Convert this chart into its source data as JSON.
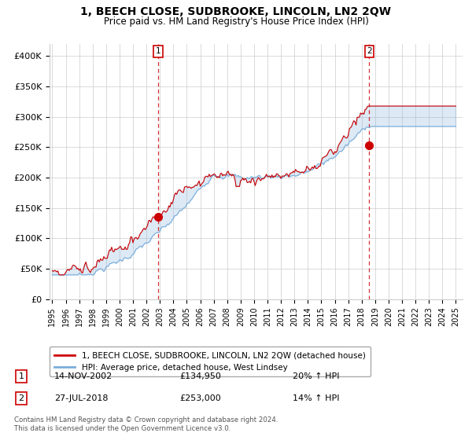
{
  "title": "1, BEECH CLOSE, SUDBROOKE, LINCOLN, LN2 2QW",
  "subtitle": "Price paid vs. HM Land Registry's House Price Index (HPI)",
  "ylabel_ticks": [
    "£0",
    "£50K",
    "£100K",
    "£150K",
    "£200K",
    "£250K",
    "£300K",
    "£350K",
    "£400K"
  ],
  "ytick_values": [
    0,
    50000,
    100000,
    150000,
    200000,
    250000,
    300000,
    350000,
    400000
  ],
  "ylim": [
    0,
    420000
  ],
  "xlim_start": 1994.8,
  "xlim_end": 2025.5,
  "xtick_years": [
    1995,
    1996,
    1997,
    1998,
    1999,
    2000,
    2001,
    2002,
    2003,
    2004,
    2005,
    2006,
    2007,
    2008,
    2009,
    2010,
    2011,
    2012,
    2013,
    2014,
    2015,
    2016,
    2017,
    2018,
    2019,
    2020,
    2021,
    2022,
    2023,
    2024,
    2025
  ],
  "sale1_x": 2002.87,
  "sale1_y": 134950,
  "sale1_label": "1",
  "sale1_date": "14-NOV-2002",
  "sale1_price": "£134,950",
  "sale1_hpi": "20% ↑ HPI",
  "sale2_x": 2018.57,
  "sale2_y": 253000,
  "sale2_label": "2",
  "sale2_date": "27-JUL-2018",
  "sale2_price": "£253,000",
  "sale2_hpi": "14% ↑ HPI",
  "legend_line1": "1, BEECH CLOSE, SUDBROOKE, LINCOLN, LN2 2QW (detached house)",
  "legend_line2": "HPI: Average price, detached house, West Lindsey",
  "footer1": "Contains HM Land Registry data © Crown copyright and database right 2024.",
  "footer2": "This data is licensed under the Open Government Licence v3.0.",
  "sale_color": "#cc0000",
  "hpi_color": "#7aaddb",
  "fill_color": "#ddeeff",
  "vline_color": "#cc0000",
  "bg_color": "#ffffff",
  "grid_color": "#cccccc"
}
